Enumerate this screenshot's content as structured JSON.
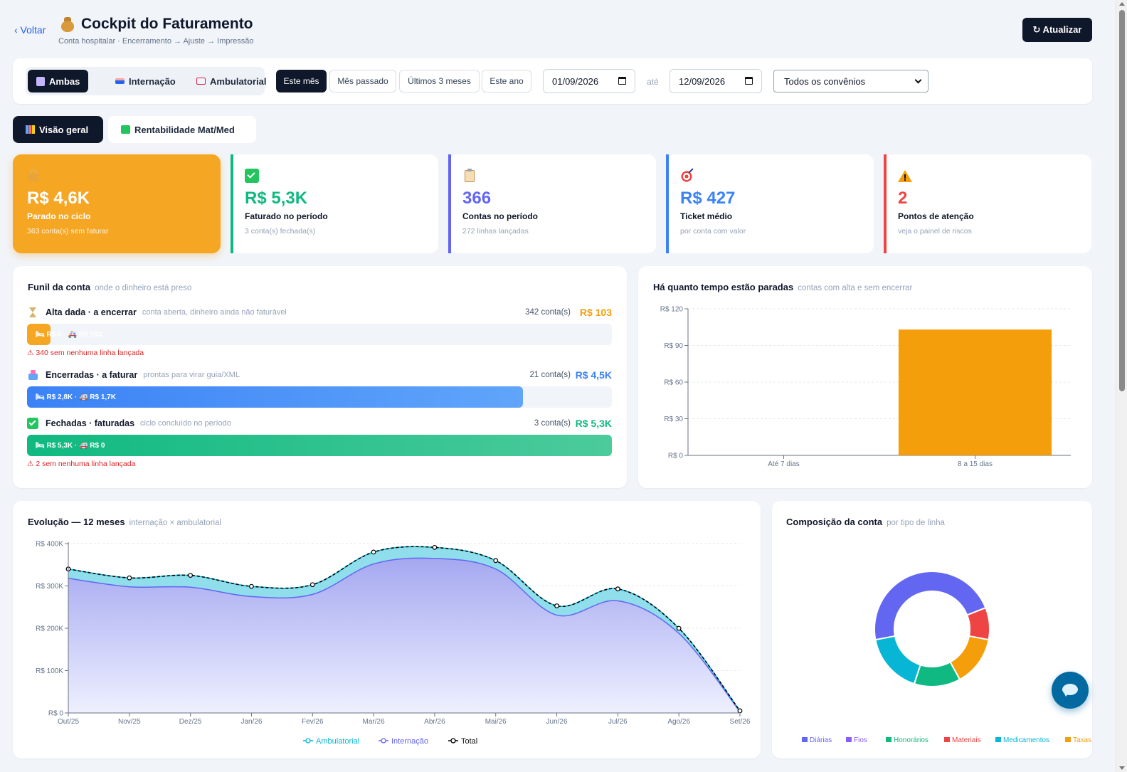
{
  "header": {
    "back_label": "‹ Voltar",
    "title": "Cockpit do Faturamento",
    "subtitle": "Conta hospitalar · Encerramento → Ajuste → Impressão",
    "refresh_label": "↻ Atualizar"
  },
  "filters": {
    "scope": [
      {
        "label": "Ambas",
        "icon": "hospital-icon",
        "active": true
      },
      {
        "label": "Internação",
        "icon": "bed-icon",
        "active": false
      },
      {
        "label": "Ambulatorial",
        "icon": "ambulance-icon",
        "active": false
      }
    ],
    "periods": [
      {
        "label": "Este mês",
        "active": true
      },
      {
        "label": "Mês passado",
        "active": false
      },
      {
        "label": "Últimos 3 meses",
        "active": false
      },
      {
        "label": "Este ano",
        "active": false
      }
    ],
    "date_from": "01/09/2026",
    "date_sep": "até",
    "date_to": "12/09/2026",
    "convenio_selected": "Todos os convênios"
  },
  "tabs": [
    {
      "label": "Visão geral",
      "icon": "bar-chart-icon",
      "active": true
    },
    {
      "label": "Rentabilidade Mat/Med",
      "icon": "trend-chart-icon",
      "active": false
    }
  ],
  "kpis": [
    {
      "icon": "lock-icon",
      "value": "R$ 4,6K",
      "label": "Parado no ciclo",
      "sub": "363 conta(s) sem faturar",
      "color": "#f5a623"
    },
    {
      "icon": "check-icon",
      "value": "R$ 5,3K",
      "label": "Faturado no período",
      "sub": "3 conta(s) fechada(s)",
      "color": "#10b981"
    },
    {
      "icon": "clipboard-icon",
      "value": "366",
      "label": "Contas no período",
      "sub": "272 linhas lançadas",
      "color": "#6366f1"
    },
    {
      "icon": "target-icon",
      "value": "R$ 427",
      "label": "Ticket médio",
      "sub": "por conta com valor",
      "color": "#3b82f6"
    },
    {
      "icon": "warning-icon",
      "value": "2",
      "label": "Pontos de atenção",
      "sub": "veja o painel de riscos",
      "color": "#ef4444"
    }
  ],
  "funnel": {
    "title": "Funil da conta",
    "subtitle": "onde o dinheiro está preso",
    "stages": [
      {
        "name": "Alta dada · a encerrar",
        "desc": "conta aberta, dinheiro ainda não faturável",
        "count": "342 conta(s)",
        "amount": "R$ 103",
        "fill_text": "🛏 R$ 0 · 🚑 R$ 103",
        "fill_fraction": 0.04,
        "color": "#f59e0b",
        "warning": "⚠ 340 sem nenhuma linha lançada",
        "icon": "hourglass-icon"
      },
      {
        "name": "Encerradas · a faturar",
        "desc": "prontas para virar guia/XML",
        "count": "21 conta(s)",
        "amount": "R$ 4,5K",
        "fill_text": "🛏 R$ 2,8K · 🚑 R$ 1,7K",
        "fill_fraction": 0.848,
        "color": "#3b82f6",
        "warning": "",
        "icon": "inbox-icon"
      },
      {
        "name": "Fechadas · faturadas",
        "desc": "ciclo concluído no período",
        "count": "3 conta(s)",
        "amount": "R$ 5,3K",
        "fill_text": "🛏 R$ 5,3K · 🚑 R$ 0",
        "fill_fraction": 1.0,
        "color": "#10b981",
        "warning": "⚠ 2 sem nenhuma linha lançada",
        "icon": "check-icon"
      }
    ]
  },
  "aging": {
    "title": "Há quanto tempo estão paradas",
    "subtitle": "contas com alta e sem encerrar"
  },
  "evolution": {
    "title": "Evolução — 12 meses",
    "subtitle": "internação × ambulatorial"
  },
  "composition": {
    "title": "Composição da conta",
    "subtitle": "por tipo de linha"
  },
  "chart_data": [
    {
      "id": "aging",
      "type": "bar",
      "categories": [
        "Até 7 dias",
        "8 a 15 dias"
      ],
      "values": [
        0,
        103
      ],
      "ylim": [
        0,
        120
      ],
      "yticks": [
        0,
        30,
        60,
        90,
        120
      ],
      "ytick_labels": [
        "R$ 0",
        "R$ 30",
        "R$ 60",
        "R$ 90",
        "R$ 120"
      ],
      "color": "#f59e0b",
      "grid": true
    },
    {
      "id": "evolution",
      "type": "area",
      "categories": [
        "Out/25",
        "Nov/25",
        "Dez/25",
        "Jan/26",
        "Fev/26",
        "Mar/26",
        "Abr/26",
        "Mai/26",
        "Jun/26",
        "Jul/26",
        "Ago/26",
        "Set/26"
      ],
      "series": [
        {
          "name": "Ambulatorial",
          "values": [
            22000,
            21000,
            28000,
            24000,
            23000,
            28000,
            26000,
            20000,
            22000,
            28000,
            12000,
            2000
          ],
          "color": "#06b6d4"
        },
        {
          "name": "Internação",
          "values": [
            318000,
            298000,
            297000,
            275000,
            280000,
            352000,
            365000,
            340000,
            231000,
            265000,
            188000,
            3000
          ],
          "color": "#6366f1"
        },
        {
          "name": "Total",
          "values": [
            340000,
            319000,
            325000,
            299000,
            303000,
            380000,
            391000,
            360000,
            253000,
            293000,
            200000,
            5000
          ],
          "color": "#000000"
        }
      ],
      "ylim": [
        0,
        400000
      ],
      "yticks": [
        0,
        100000,
        200000,
        300000,
        400000
      ],
      "ytick_labels": [
        "R$ 0",
        "R$ 100K",
        "R$ 200K",
        "R$ 300K",
        "R$ 400K"
      ],
      "legend": "bottom",
      "grid": true
    },
    {
      "id": "composition",
      "type": "pie",
      "labels": [
        "Diárias",
        "Fios",
        "Honorários",
        "Materiais",
        "Medicamentos",
        "Taxas"
      ],
      "values": [
        47,
        0,
        13,
        9,
        17,
        14
      ],
      "colors": [
        "#6366f1",
        "#8b5cf6",
        "#10b981",
        "#ef4444",
        "#06b6d4",
        "#f59e0b"
      ],
      "legend": "bottom"
    }
  ]
}
